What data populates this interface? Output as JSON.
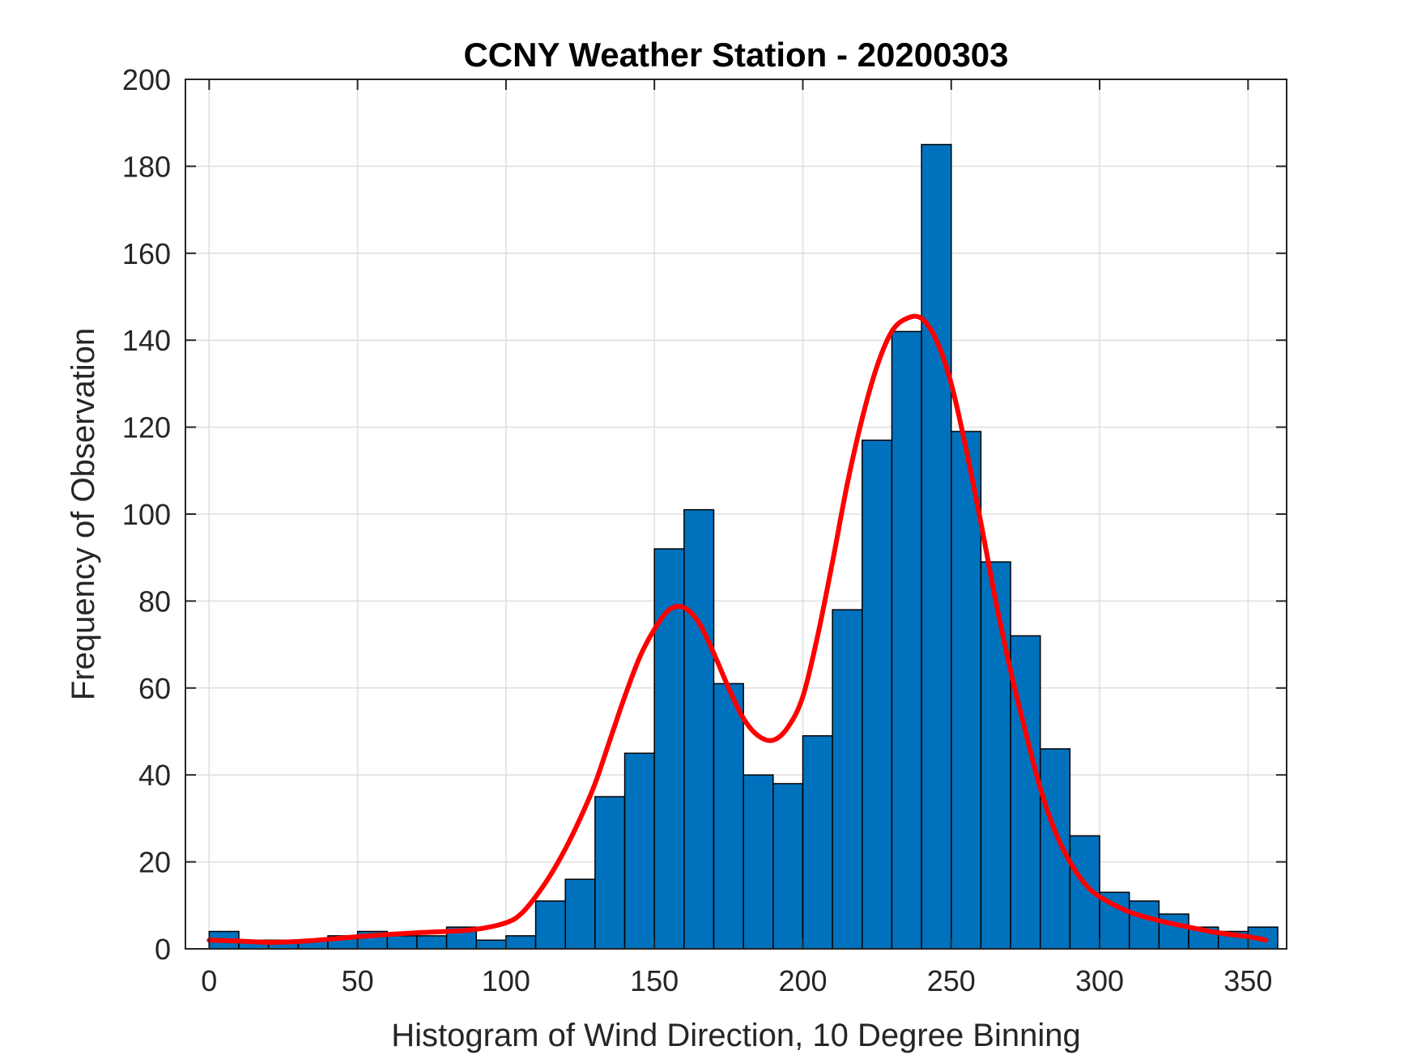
{
  "chart_data": {
    "type": "bar",
    "title": "CCNY Weather Station - 20200303",
    "xlabel": "Histogram of Wind Direction, 10 Degree Binning",
    "ylabel": "Frequency of Observation",
    "bin_width": 10,
    "bin_starts": [
      0,
      10,
      20,
      30,
      40,
      50,
      60,
      70,
      80,
      90,
      100,
      110,
      120,
      130,
      140,
      150,
      160,
      170,
      180,
      190,
      200,
      210,
      220,
      230,
      240,
      250,
      260,
      270,
      280,
      290,
      300,
      310,
      320,
      330,
      340,
      350
    ],
    "values": [
      4,
      2,
      2,
      2,
      3,
      4,
      3,
      3,
      5,
      2,
      3,
      11,
      16,
      35,
      45,
      92,
      101,
      61,
      40,
      38,
      49,
      78,
      117,
      142,
      185,
      119,
      89,
      72,
      46,
      26,
      13,
      11,
      8,
      5,
      4,
      5
    ],
    "fit_curve": {
      "name": "density fit",
      "x": [
        0,
        10,
        20,
        30,
        40,
        50,
        60,
        70,
        80,
        90,
        100,
        105,
        110,
        115,
        120,
        125,
        130,
        135,
        140,
        145,
        150,
        155,
        160,
        165,
        170,
        175,
        180,
        185,
        190,
        195,
        200,
        205,
        210,
        215,
        220,
        225,
        230,
        235,
        240,
        245,
        250,
        255,
        260,
        265,
        270,
        275,
        280,
        285,
        290,
        295,
        300,
        310,
        320,
        330,
        340,
        350,
        356
      ],
      "y": [
        2,
        1.8,
        1.5,
        1.7,
        2.2,
        2.8,
        3.3,
        3.7,
        4,
        4.5,
        6,
        8,
        12,
        17,
        23,
        30,
        38,
        48,
        58,
        67,
        73.5,
        78,
        78.5,
        75,
        68,
        60,
        53,
        49,
        48,
        51,
        58,
        72,
        89,
        107,
        122,
        134,
        142,
        145,
        145,
        140,
        130,
        115,
        98,
        80,
        64,
        50,
        37,
        27,
        20,
        15,
        12,
        8.5,
        6.5,
        5,
        3.7,
        2.8,
        2
      ]
    },
    "xlim": [
      -8,
      363
    ],
    "ylim": [
      0,
      200
    ],
    "xticks": [
      0,
      50,
      100,
      150,
      200,
      250,
      300,
      350
    ],
    "yticks": [
      0,
      20,
      40,
      60,
      80,
      100,
      120,
      140,
      160,
      180,
      200
    ],
    "grid": true,
    "colors": {
      "bar_fill": "#0072BD",
      "bar_edge": "#000000",
      "curve": "#FF0000",
      "grid": "#dfdfdf",
      "axis": "#262626"
    }
  }
}
